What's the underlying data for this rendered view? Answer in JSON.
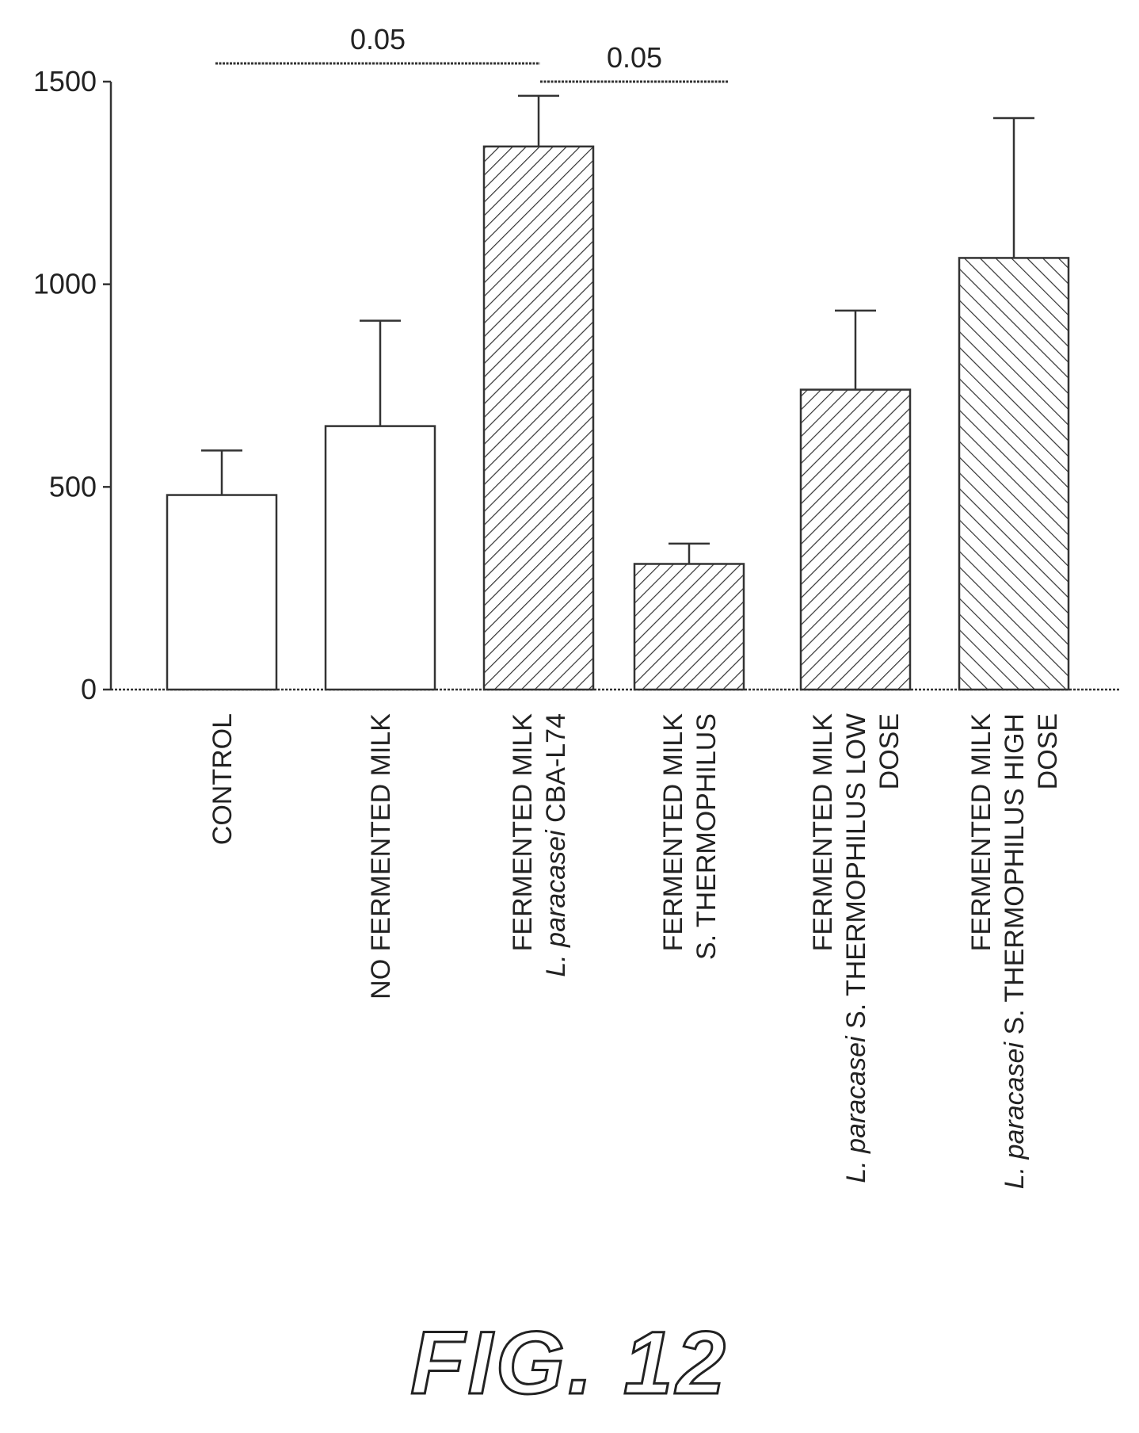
{
  "chart_data": {
    "type": "bar",
    "title": "",
    "xlabel": "",
    "ylabel": "",
    "ylim": [
      0,
      1500
    ],
    "yticks": [
      0,
      500,
      1000,
      1500
    ],
    "categories": [
      [
        "CONTROL"
      ],
      [
        "NO FERMENTED MILK"
      ],
      [
        "FERMENTED MILK",
        "L. paracasei CBA-L74"
      ],
      [
        "FERMENTED MILK",
        "S. THERMOPHILUS"
      ],
      [
        "FERMENTED MILK",
        "L. paracasei S. THERMOPHILUS LOW",
        "DOSE"
      ],
      [
        "FERMENTED MILK",
        "L. paracasei S. THERMOPHILUS HIGH",
        "DOSE"
      ]
    ],
    "values": [
      480,
      650,
      1340,
      310,
      740,
      1065
    ],
    "errors": [
      110,
      260,
      125,
      50,
      195,
      345
    ],
    "fills": [
      "none",
      "none",
      "hatch-fine",
      "hatch-fine",
      "hatch-fine",
      "hatch-reverse"
    ],
    "significance": [
      {
        "from": 0,
        "to": 2,
        "label": "0.05"
      },
      {
        "from": 2,
        "to": 3,
        "label": "0.05"
      }
    ],
    "grid": false,
    "legend": "none"
  },
  "caption": "FIG. 12"
}
